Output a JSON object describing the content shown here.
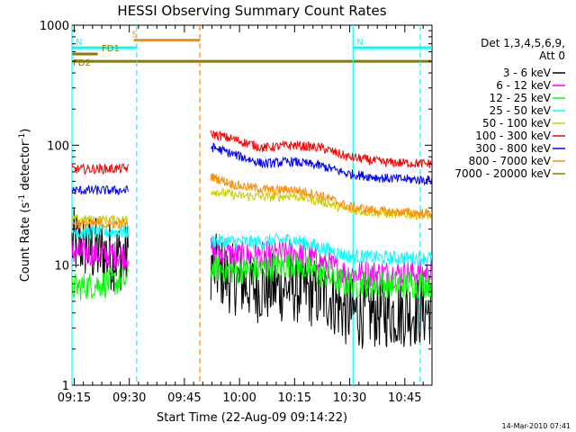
{
  "chart_data": {
    "type": "line",
    "title": "HESSI Observing Summary Count Rates",
    "xlabel": "Start Time (22-Aug-09 09:14:22)",
    "ylabel_main": "Count Rate (s",
    "ylabel_sup1": "-1",
    "ylabel_mid": " detector",
    "ylabel_sup2": "-1",
    "ylabel_end": ")",
    "y_scale": "log",
    "ylim": [
      1,
      1000
    ],
    "xlim_min": [
      0,
      98
    ],
    "x_tick_labels": [
      "09:15",
      "09:30",
      "09:45",
      "10:00",
      "10:15",
      "10:30",
      "10:45"
    ],
    "x_tick_minutes": [
      0.6,
      15.6,
      30.6,
      45.6,
      60.6,
      75.6,
      90.6
    ],
    "y_tick_labels": [
      "1",
      "10",
      "100",
      "1000"
    ],
    "y_tick_values": [
      1,
      10,
      100,
      1000
    ],
    "legend": {
      "header1": "Det 1,3,4,5,6,9,",
      "header2": "Att 0",
      "entries": [
        {
          "label": "3 - 6 keV",
          "color": "#000000"
        },
        {
          "label": "6 - 12 keV",
          "color": "#ff00ff"
        },
        {
          "label": "12 - 25 keV",
          "color": "#00ff00"
        },
        {
          "label": "25 - 50 keV",
          "color": "#00ffff"
        },
        {
          "label": "50 - 100 keV",
          "color": "#cccc00"
        },
        {
          "label": "100 - 300 keV",
          "color": "#ff0000"
        },
        {
          "label": "300 - 800 keV",
          "color": "#0000ff"
        },
        {
          "label": "800 - 7000 keV",
          "color": "#ff8c00"
        },
        {
          "label": "7000 - 20000 keV",
          "color": "#8b7a00"
        }
      ]
    },
    "segments": [
      {
        "start": 0,
        "end": 15.4
      },
      {
        "start": 37.8,
        "end": 98
      }
    ],
    "series": [
      {
        "name": "3 - 6 keV",
        "color": "#000000",
        "noise": 0.3,
        "points": [
          [
            0,
            15
          ],
          [
            3,
            15
          ],
          [
            6,
            13
          ],
          [
            10,
            12
          ],
          [
            15.4,
            12
          ],
          [
            37.8,
            10
          ],
          [
            42,
            8
          ],
          [
            50,
            6.5
          ],
          [
            60,
            6.5
          ],
          [
            70,
            5.5
          ],
          [
            75,
            4
          ],
          [
            85,
            4
          ],
          [
            98,
            4.2
          ]
        ]
      },
      {
        "name": "6 - 12 keV",
        "color": "#ff00ff",
        "noise": 0.12,
        "points": [
          [
            0,
            13
          ],
          [
            15.4,
            12
          ],
          [
            37.8,
            13
          ],
          [
            45,
            12
          ],
          [
            55,
            12
          ],
          [
            60,
            13
          ],
          [
            65,
            11.5
          ],
          [
            75,
            8.5
          ],
          [
            85,
            8.5
          ],
          [
            98,
            8.5
          ]
        ]
      },
      {
        "name": "12 - 25 keV",
        "color": "#00ff00",
        "noise": 0.12,
        "points": [
          [
            0,
            6.5
          ],
          [
            15.4,
            7.5
          ],
          [
            37.8,
            9.5
          ],
          [
            45,
            9
          ],
          [
            55,
            9.5
          ],
          [
            60,
            10.5
          ],
          [
            65,
            9
          ],
          [
            75,
            7
          ],
          [
            85,
            7
          ],
          [
            98,
            7
          ]
        ]
      },
      {
        "name": "25 - 50 keV",
        "color": "#00ffff",
        "noise": 0.06,
        "points": [
          [
            0,
            19
          ],
          [
            15.4,
            19
          ],
          [
            37.8,
            16
          ],
          [
            50,
            15.5
          ],
          [
            60,
            16.5
          ],
          [
            68,
            14
          ],
          [
            75,
            12
          ],
          [
            85,
            11.5
          ],
          [
            98,
            11.5
          ]
        ]
      },
      {
        "name": "50 - 100 keV",
        "color": "#cccc00",
        "noise": 0.04,
        "points": [
          [
            0,
            24
          ],
          [
            15.4,
            24
          ],
          [
            37.8,
            42
          ],
          [
            45,
            38
          ],
          [
            55,
            37
          ],
          [
            60,
            38
          ],
          [
            68,
            34
          ],
          [
            75,
            29
          ],
          [
            85,
            27
          ],
          [
            98,
            26
          ]
        ]
      },
      {
        "name": "100 - 300 keV",
        "color": "#ff0000",
        "noise": 0.04,
        "points": [
          [
            0,
            63
          ],
          [
            15.4,
            64
          ],
          [
            37.8,
            125
          ],
          [
            45,
            110
          ],
          [
            52,
            95
          ],
          [
            60,
            100
          ],
          [
            68,
            95
          ],
          [
            75,
            80
          ],
          [
            85,
            72
          ],
          [
            98,
            70
          ]
        ]
      },
      {
        "name": "300 - 800 keV",
        "color": "#0000ff",
        "noise": 0.04,
        "points": [
          [
            0,
            42
          ],
          [
            15.4,
            42
          ],
          [
            37.8,
            97
          ],
          [
            45,
            82
          ],
          [
            52,
            70
          ],
          [
            60,
            73
          ],
          [
            68,
            67
          ],
          [
            75,
            58
          ],
          [
            85,
            53
          ],
          [
            98,
            51
          ]
        ]
      },
      {
        "name": "800 - 7000 keV",
        "color": "#ff8c00",
        "noise": 0.04,
        "points": [
          [
            0,
            22
          ],
          [
            15.4,
            22
          ],
          [
            37.8,
            55
          ],
          [
            45,
            46
          ],
          [
            55,
            42
          ],
          [
            60,
            43
          ],
          [
            68,
            38
          ],
          [
            75,
            31
          ],
          [
            85,
            28
          ],
          [
            98,
            27
          ]
        ]
      }
    ],
    "flag_bars": [
      {
        "label": "S",
        "color": "#ff8c00",
        "start": 16.8,
        "end": 34.8,
        "level": 750
      },
      {
        "label": "N",
        "color": "#00ffff",
        "start": 0,
        "end": 17.6,
        "level": 650
      },
      {
        "label": "N",
        "color": "#00ffff",
        "start": 76.5,
        "end": 98,
        "level": 650
      },
      {
        "label": "FD1",
        "color": "#8b7a00",
        "start": 0,
        "end": 7,
        "level": 575
      },
      {
        "label": "FD2",
        "color": "#8b7a00",
        "start": 0,
        "end": 98,
        "level": 500
      }
    ],
    "vertical_markers": [
      {
        "x": 0,
        "color": "#00ffff",
        "dash": false
      },
      {
        "x": 17.6,
        "color": "#00ffff",
        "dash": true
      },
      {
        "x": 34.8,
        "color": "#ff8c00",
        "dash": true
      },
      {
        "x": 76.5,
        "color": "#00ffff",
        "dash": false
      },
      {
        "x": 94.8,
        "color": "#00ffff",
        "dash": true
      }
    ],
    "footer_date": "14-Mar-2010 07:41"
  }
}
